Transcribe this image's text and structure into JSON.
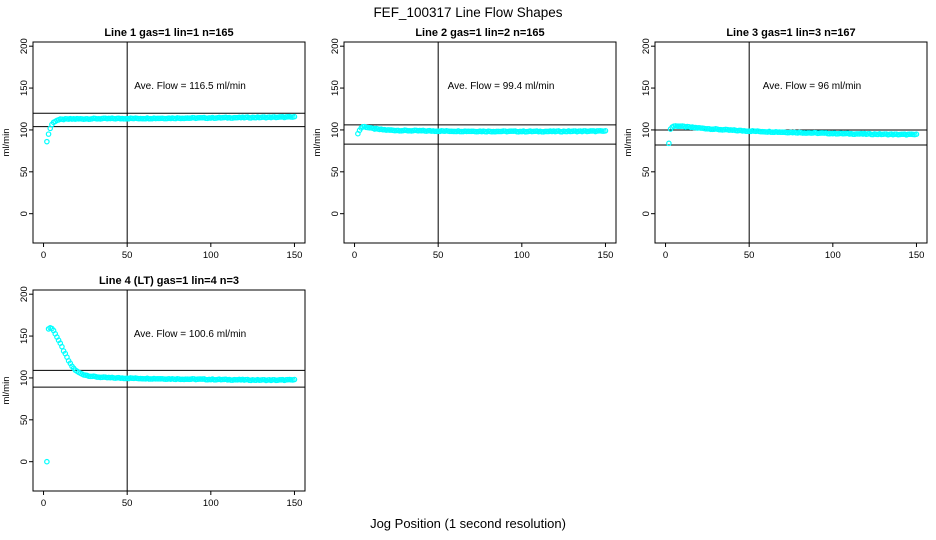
{
  "page": {
    "title": "FEF_100317  Line Flow Shapes",
    "xlabel": "Jog Position (1 second resolution)"
  },
  "style": {
    "point_color": "#00FFFF",
    "line_color": "#000000",
    "text_color": "#000000",
    "background": "#FFFFFF"
  },
  "chart_data": [
    {
      "type": "scatter",
      "title": "Line 1 gas=1 lin=1 n=165",
      "annotation": "Ave. Flow =  116.5  ml/min",
      "ave_flow": 116.5,
      "n": 165,
      "ylabel": "ml/min",
      "x_ticks": [
        0,
        50,
        100,
        150
      ],
      "y_ticks": [
        0,
        50,
        100,
        150,
        200
      ],
      "xlim": [
        -6.3,
        156.3
      ],
      "ylim": [
        -35,
        205
      ],
      "vline_x": 50,
      "hlines": [
        120,
        104
      ],
      "x_end": 150,
      "keypoints": [
        [
          4,
          102
        ],
        [
          5,
          106.5
        ],
        [
          6,
          109
        ],
        [
          7,
          110.5
        ],
        [
          8,
          111.5
        ],
        [
          10,
          112.5
        ],
        [
          15,
          113
        ],
        [
          30,
          113.4
        ],
        [
          60,
          113.8
        ],
        [
          90,
          114.2
        ],
        [
          120,
          114.8
        ],
        [
          150,
          115.4
        ]
      ],
      "outliers": [
        [
          2,
          86
        ],
        [
          3,
          95
        ]
      ]
    },
    {
      "type": "scatter",
      "title": "Line 2 gas=1 lin=2 n=165",
      "annotation": "Ave. Flow =  99.4  ml/min",
      "ave_flow": 99.4,
      "n": 165,
      "ylabel": "ml/min",
      "x_ticks": [
        0,
        50,
        100,
        150
      ],
      "y_ticks": [
        0,
        50,
        100,
        150,
        200
      ],
      "xlim": [
        -6.3,
        156.3
      ],
      "ylim": [
        -35,
        205
      ],
      "vline_x": 50,
      "hlines": [
        106,
        83
      ],
      "x_end": 150,
      "keypoints": [
        [
          3,
          99.5
        ],
        [
          4,
          102.5
        ],
        [
          5,
          103.8
        ],
        [
          6,
          103.8
        ],
        [
          8,
          103
        ],
        [
          10,
          102
        ],
        [
          14,
          100.8
        ],
        [
          20,
          99.8
        ],
        [
          30,
          99.2
        ],
        [
          50,
          98.7
        ],
        [
          80,
          98.3
        ],
        [
          115,
          98.2
        ],
        [
          150,
          98.6
        ]
      ],
      "outliers": [
        [
          2,
          95.5
        ]
      ]
    },
    {
      "type": "scatter",
      "title": "Line 3 gas=1 lin=3 n=167",
      "annotation": "Ave. Flow =  96  ml/min",
      "ave_flow": 96,
      "n": 167,
      "ylabel": "ml/min",
      "x_ticks": [
        0,
        50,
        100,
        150
      ],
      "y_ticks": [
        0,
        50,
        100,
        150,
        200
      ],
      "xlim": [
        -6.3,
        156.3
      ],
      "ylim": [
        -35,
        205
      ],
      "vline_x": 50,
      "hlines": [
        100,
        82
      ],
      "x_end": 150,
      "keypoints": [
        [
          3,
          101
        ],
        [
          4,
          103.5
        ],
        [
          5,
          104.6
        ],
        [
          7,
          104.8
        ],
        [
          10,
          104.2
        ],
        [
          15,
          103.2
        ],
        [
          22,
          102
        ],
        [
          32,
          100.5
        ],
        [
          45,
          99.1
        ],
        [
          60,
          98
        ],
        [
          80,
          96.8
        ],
        [
          100,
          95.8
        ],
        [
          120,
          95.1
        ],
        [
          140,
          94.6
        ],
        [
          150,
          94.5
        ]
      ],
      "outliers": [
        [
          2,
          84
        ]
      ]
    },
    {
      "type": "scatter",
      "title": "Line 4 (LT) gas=1 lin=4 n=3",
      "annotation": "Ave. Flow =  100.6  ml/min",
      "ave_flow": 100.6,
      "n": 3,
      "ylabel": "ml/min",
      "x_ticks": [
        0,
        50,
        100,
        150
      ],
      "y_ticks": [
        0,
        50,
        100,
        150,
        200
      ],
      "xlim": [
        -6.3,
        156.3
      ],
      "ylim": [
        -35,
        205
      ],
      "vline_x": 50,
      "hlines": [
        109,
        89
      ],
      "x_end": 150,
      "keypoints": [
        [
          3,
          158.5
        ],
        [
          4,
          160
        ],
        [
          5,
          159
        ],
        [
          6,
          156.5
        ],
        [
          7,
          153
        ],
        [
          8,
          149
        ],
        [
          9,
          145
        ],
        [
          10,
          141
        ],
        [
          11,
          137
        ],
        [
          12,
          132.5
        ],
        [
          13,
          128.5
        ],
        [
          14,
          124.5
        ],
        [
          15,
          120.5
        ],
        [
          16,
          117
        ],
        [
          17,
          114
        ],
        [
          18,
          111.5
        ],
        [
          19,
          109.5
        ],
        [
          20,
          107.8
        ],
        [
          22,
          105.5
        ],
        [
          24,
          104
        ],
        [
          26,
          103
        ],
        [
          28,
          102.2
        ],
        [
          31,
          101.4
        ],
        [
          35,
          100.7
        ],
        [
          40,
          100.2
        ],
        [
          50,
          99.7
        ],
        [
          65,
          99.2
        ],
        [
          85,
          98.6
        ],
        [
          105,
          98.1
        ],
        [
          125,
          97.6
        ],
        [
          140,
          97.4
        ],
        [
          150,
          97.7
        ]
      ],
      "outliers": [
        [
          2,
          0
        ]
      ]
    }
  ]
}
